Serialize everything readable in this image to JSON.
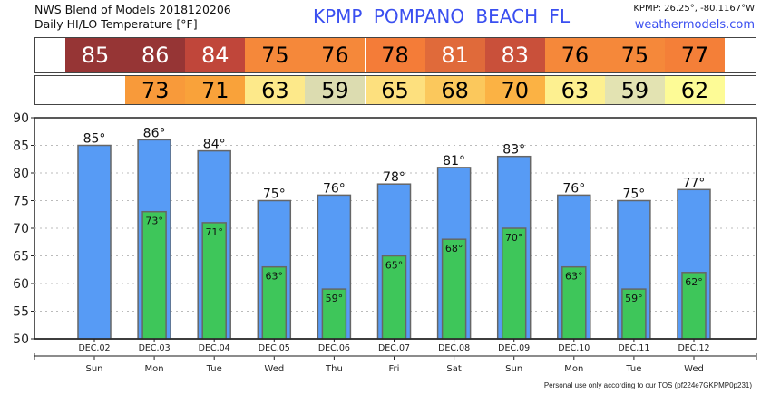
{
  "header": {
    "title1": "NWS Blend of Models 2018120206",
    "title2": "Daily HI/LO Temperature [°F]",
    "station": "KPMP  POMPANO BEACH  FL",
    "coords": "KPMP: 26.25°, -80.1167°W",
    "site": "weathermodels.com"
  },
  "footer": {
    "tos": "Personal use only according to our TOS (pf224e7GKPMP0p231)"
  },
  "table": {
    "hi": [
      {
        "v": "85",
        "bg": "#963535",
        "fg": "#ffffff"
      },
      {
        "v": "86",
        "bg": "#963535",
        "fg": "#ffffff"
      },
      {
        "v": "84",
        "bg": "#c0463a",
        "fg": "#ffffff"
      },
      {
        "v": "75",
        "bg": "#f5883a",
        "fg": "#000000"
      },
      {
        "v": "76",
        "bg": "#f5883a",
        "fg": "#000000"
      },
      {
        "v": "78",
        "bg": "#f47c38",
        "fg": "#000000"
      },
      {
        "v": "81",
        "bg": "#e06a3a",
        "fg": "#ffffff"
      },
      {
        "v": "83",
        "bg": "#c9503a",
        "fg": "#ffffff"
      },
      {
        "v": "76",
        "bg": "#f5883a",
        "fg": "#000000"
      },
      {
        "v": "75",
        "bg": "#f5883a",
        "fg": "#000000"
      },
      {
        "v": "77",
        "bg": "#f47f38",
        "fg": "#000000"
      }
    ],
    "lo": [
      null,
      {
        "v": "73",
        "bg": "#f89a3a",
        "fg": "#000000"
      },
      {
        "v": "71",
        "bg": "#f9a23a",
        "fg": "#000000"
      },
      {
        "v": "63",
        "bg": "#fde98a",
        "fg": "#000000"
      },
      {
        "v": "59",
        "bg": "#dcdcb0",
        "fg": "#000000"
      },
      {
        "v": "65",
        "bg": "#fde07e",
        "fg": "#000000"
      },
      {
        "v": "68",
        "bg": "#fbc85c",
        "fg": "#000000"
      },
      {
        "v": "70",
        "bg": "#fbb244",
        "fg": "#000000"
      },
      {
        "v": "63",
        "bg": "#fdf090",
        "fg": "#000000"
      },
      {
        "v": "59",
        "bg": "#e3e3b2",
        "fg": "#000000"
      },
      {
        "v": "62",
        "bg": "#fdfb96",
        "fg": "#000000"
      }
    ]
  },
  "chart_data": {
    "type": "bar",
    "categories": [
      "DEC.02",
      "DEC.03",
      "DEC.04",
      "DEC.05",
      "DEC.06",
      "DEC.07",
      "DEC.08",
      "DEC.09",
      "DEC.10",
      "DEC.11",
      "DEC.12"
    ],
    "days": [
      "Sun",
      "Mon",
      "Tue",
      "Wed",
      "Thu",
      "Fri",
      "Sat",
      "Sun",
      "Mon",
      "Tue",
      "Wed"
    ],
    "series": [
      {
        "name": "High",
        "color": "#579bf5",
        "values": [
          85,
          86,
          84,
          75,
          76,
          78,
          81,
          83,
          76,
          75,
          77
        ],
        "labels": [
          "85°",
          "86°",
          "84°",
          "75°",
          "76°",
          "78°",
          "81°",
          "83°",
          "76°",
          "75°",
          "77°"
        ]
      },
      {
        "name": "Low",
        "color": "#3ec65a",
        "values": [
          null,
          73,
          71,
          63,
          59,
          65,
          68,
          70,
          63,
          59,
          62
        ],
        "labels": [
          null,
          "73°",
          "71°",
          "63°",
          "59°",
          "65°",
          "68°",
          "70°",
          "63°",
          "59°",
          "62°"
        ]
      }
    ],
    "ylim": [
      50,
      90
    ],
    "yticks": [
      "50",
      "55",
      "60",
      "65",
      "70",
      "75",
      "80",
      "85",
      "90"
    ],
    "grid": true
  }
}
